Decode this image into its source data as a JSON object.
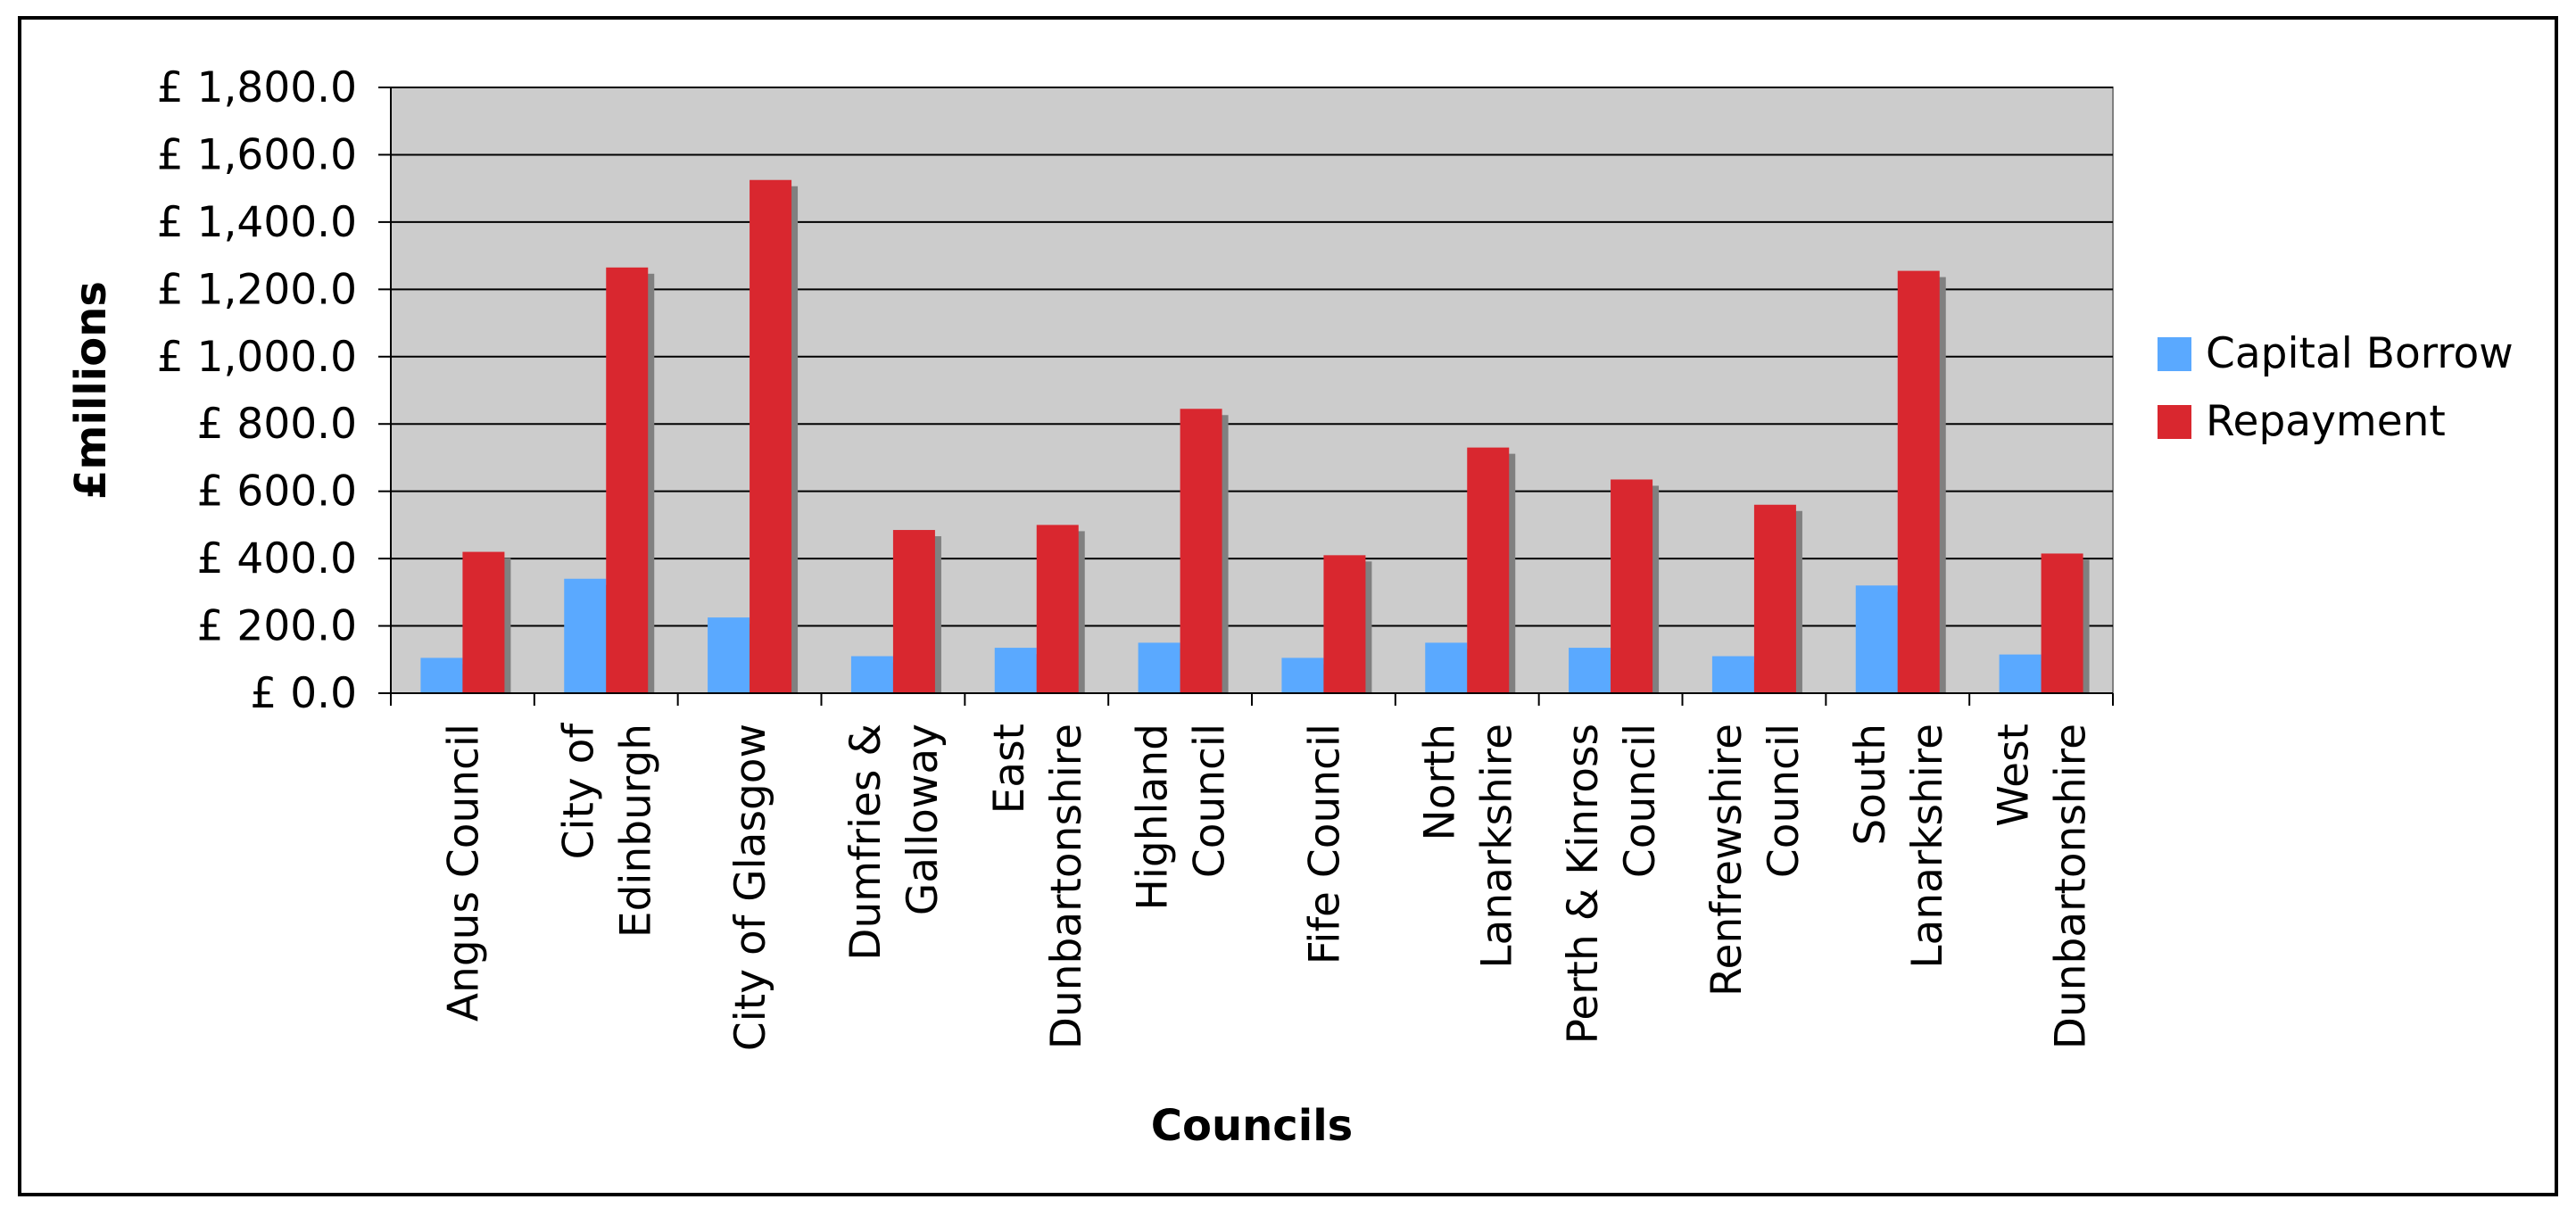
{
  "chart_data": {
    "type": "bar",
    "title": "",
    "xlabel": "Councils",
    "ylabel": "£millions",
    "ylim": [
      0,
      1800
    ],
    "yticks": [
      0,
      200,
      400,
      600,
      800,
      1000,
      1200,
      1400,
      1600,
      1800
    ],
    "ytick_labels": [
      "£ 0.0",
      "£ 200.0",
      "£ 400.0",
      "£ 600.0",
      "£ 800.0",
      "£ 1,000.0",
      "£ 1,200.0",
      "£ 1,400.0",
      "£ 1,600.0",
      "£ 1,800.0"
    ],
    "categories": [
      "Angus Council",
      "City of Edinburgh",
      "City of Glasgow",
      "Dumfries & Galloway",
      "East Dunbartonshire",
      "Highland Council",
      "Fife Council",
      "North Lanarkshire",
      "Perth & Kinross Council",
      "Renfrewshire Council",
      "South Lanarkshire",
      "West Dunbartonshire"
    ],
    "category_lines": [
      [
        "Angus Council"
      ],
      [
        "City of",
        "Edinburgh"
      ],
      [
        "City of Glasgow"
      ],
      [
        "Dumfries &",
        "Galloway"
      ],
      [
        "East",
        "Dunbartonshire"
      ],
      [
        "Highland",
        "Council"
      ],
      [
        "Fife Council"
      ],
      [
        "North",
        "Lanarkshire"
      ],
      [
        "Perth & Kinross",
        "Council"
      ],
      [
        "Renfrewshire",
        "Council"
      ],
      [
        "South",
        "Lanarkshire"
      ],
      [
        "West",
        "Dunbartonshire"
      ]
    ],
    "series": [
      {
        "name": "Capital Borrow",
        "color": "#5aa9ff",
        "values": [
          105,
          340,
          225,
          110,
          135,
          150,
          105,
          150,
          135,
          110,
          320,
          115
        ]
      },
      {
        "name": "Repayment",
        "color": "#d9272f",
        "values": [
          420,
          1265,
          1525,
          485,
          500,
          845,
          410,
          730,
          635,
          560,
          1255,
          415
        ]
      }
    ],
    "grid": true,
    "plot_background": "#cccccc",
    "shadow_color": "#808080",
    "legend_position": "right"
  }
}
